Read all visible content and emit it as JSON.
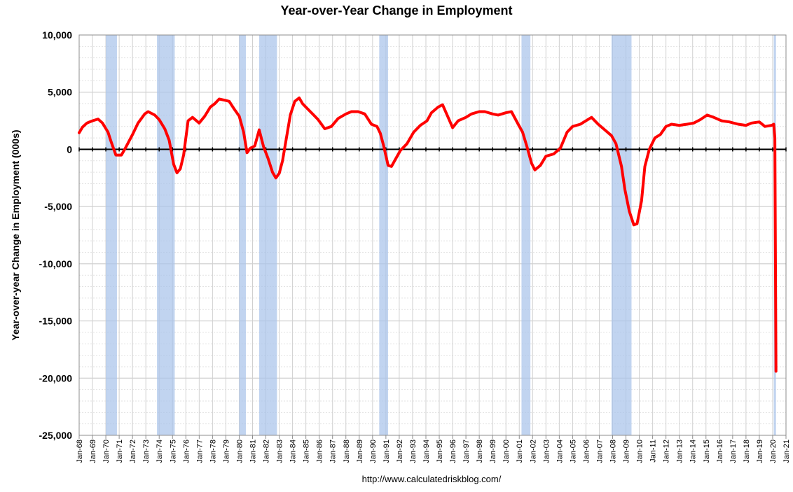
{
  "chart_data": {
    "type": "line",
    "title": "Year-over-Year Change in Employment",
    "ylabel": "Year-over-year Change in Employment (000s)",
    "source": "http://www.calculatedriskblog.com/",
    "ylim": [
      -25000,
      10000
    ],
    "xlim": [
      "1968-01",
      "2021-01"
    ],
    "y_ticks": [
      "10,000",
      "5,000",
      "0",
      "-5,000",
      "-10,000",
      "-15,000",
      "-20,000",
      "-25,000"
    ],
    "x_ticks": [
      "Jan-68",
      "Jan-69",
      "Jan-70",
      "Jan-71",
      "Jan-72",
      "Jan-73",
      "Jan-74",
      "Jan-75",
      "Jan-76",
      "Jan-77",
      "Jan-78",
      "Jan-79",
      "Jan-80",
      "Jan-81",
      "Jan-82",
      "Jan-83",
      "Jan-84",
      "Jan-85",
      "Jan-86",
      "Jan-87",
      "Jan-88",
      "Jan-89",
      "Jan-90",
      "Jan-91",
      "Jan-92",
      "Jan-93",
      "Jan-94",
      "Jan-95",
      "Jan-96",
      "Jan-97",
      "Jan-98",
      "Jan-99",
      "Jan-00",
      "Jan-01",
      "Jan-02",
      "Jan-03",
      "Jan-04",
      "Jan-05",
      "Jan-06",
      "Jan-07",
      "Jan-08",
      "Jan-09",
      "Jan-10",
      "Jan-11",
      "Jan-12",
      "Jan-13",
      "Jan-14",
      "Jan-15",
      "Jan-16",
      "Jan-17",
      "Jan-18",
      "Jan-19",
      "Jan-20",
      "Jan-21"
    ],
    "grid": true,
    "recessions": [
      {
        "start": "1970-01",
        "end": "1970-11"
      },
      {
        "start": "1973-11",
        "end": "1975-03"
      },
      {
        "start": "1980-01",
        "end": "1980-07"
      },
      {
        "start": "1981-07",
        "end": "1982-11"
      },
      {
        "start": "1990-07",
        "end": "1991-03"
      },
      {
        "start": "2001-03",
        "end": "2001-11"
      },
      {
        "start": "2007-12",
        "end": "2009-06"
      },
      {
        "start": "2020-02",
        "end": "2020-04"
      }
    ],
    "series": [
      {
        "color": "#ff0000",
        "points": [
          [
            "1968-01",
            1450
          ],
          [
            "1968-04",
            1950
          ],
          [
            "1968-08",
            2300
          ],
          [
            "1969-01",
            2500
          ],
          [
            "1969-06",
            2650
          ],
          [
            "1969-10",
            2300
          ],
          [
            "1970-03",
            1500
          ],
          [
            "1970-06",
            600
          ],
          [
            "1970-10",
            -500
          ],
          [
            "1971-03",
            -500
          ],
          [
            "1971-06",
            0
          ],
          [
            "1972-01",
            1300
          ],
          [
            "1972-06",
            2300
          ],
          [
            "1972-12",
            3100
          ],
          [
            "1973-03",
            3300
          ],
          [
            "1973-09",
            3000
          ],
          [
            "1974-01",
            2600
          ],
          [
            "1974-06",
            1800
          ],
          [
            "1974-10",
            800
          ],
          [
            "1975-02",
            -1300
          ],
          [
            "1975-05",
            -2050
          ],
          [
            "1975-08",
            -1700
          ],
          [
            "1975-11",
            -500
          ],
          [
            "1976-03",
            2500
          ],
          [
            "1976-07",
            2800
          ],
          [
            "1977-01",
            2300
          ],
          [
            "1977-06",
            2900
          ],
          [
            "1977-11",
            3700
          ],
          [
            "1978-03",
            4000
          ],
          [
            "1978-07",
            4400
          ],
          [
            "1978-12",
            4300
          ],
          [
            "1979-04",
            4200
          ],
          [
            "1979-08",
            3600
          ],
          [
            "1980-01",
            2900
          ],
          [
            "1980-05",
            1500
          ],
          [
            "1980-08",
            -300
          ],
          [
            "1980-11",
            100
          ],
          [
            "1981-03",
            300
          ],
          [
            "1981-07",
            1700
          ],
          [
            "1981-11",
            200
          ],
          [
            "1982-03",
            -800
          ],
          [
            "1982-07",
            -2000
          ],
          [
            "1982-10",
            -2500
          ],
          [
            "1983-01",
            -2100
          ],
          [
            "1983-04",
            -1000
          ],
          [
            "1983-08",
            1300
          ],
          [
            "1983-11",
            3000
          ],
          [
            "1984-03",
            4200
          ],
          [
            "1984-07",
            4500
          ],
          [
            "1984-10",
            4000
          ],
          [
            "1985-01",
            3700
          ],
          [
            "1985-06",
            3200
          ],
          [
            "1985-12",
            2600
          ],
          [
            "1986-06",
            1800
          ],
          [
            "1986-12",
            2000
          ],
          [
            "1987-06",
            2700
          ],
          [
            "1988-01",
            3100
          ],
          [
            "1988-06",
            3300
          ],
          [
            "1988-12",
            3300
          ],
          [
            "1989-06",
            3100
          ],
          [
            "1989-12",
            2200
          ],
          [
            "1990-05",
            2000
          ],
          [
            "1990-08",
            1400
          ],
          [
            "1990-11",
            300
          ],
          [
            "1991-03",
            -1400
          ],
          [
            "1991-06",
            -1500
          ],
          [
            "1991-10",
            -800
          ],
          [
            "1992-02",
            -100
          ],
          [
            "1992-08",
            500
          ],
          [
            "1993-02",
            1500
          ],
          [
            "1993-08",
            2100
          ],
          [
            "1994-02",
            2500
          ],
          [
            "1994-06",
            3200
          ],
          [
            "1994-12",
            3700
          ],
          [
            "1995-04",
            3900
          ],
          [
            "1995-09",
            2800
          ],
          [
            "1996-01",
            1900
          ],
          [
            "1996-06",
            2500
          ],
          [
            "1997-01",
            2800
          ],
          [
            "1997-06",
            3100
          ],
          [
            "1998-01",
            3300
          ],
          [
            "1998-06",
            3300
          ],
          [
            "1999-01",
            3100
          ],
          [
            "1999-06",
            3000
          ],
          [
            "2000-01",
            3200
          ],
          [
            "2000-06",
            3300
          ],
          [
            "2000-12",
            2200
          ],
          [
            "2001-04",
            1500
          ],
          [
            "2001-08",
            200
          ],
          [
            "2001-12",
            -1200
          ],
          [
            "2002-03",
            -1800
          ],
          [
            "2002-08",
            -1400
          ],
          [
            "2003-01",
            -600
          ],
          [
            "2003-08",
            -400
          ],
          [
            "2004-02",
            100
          ],
          [
            "2004-08",
            1500
          ],
          [
            "2005-01",
            2000
          ],
          [
            "2005-08",
            2200
          ],
          [
            "2006-01",
            2500
          ],
          [
            "2006-06",
            2800
          ],
          [
            "2006-12",
            2200
          ],
          [
            "2007-06",
            1700
          ],
          [
            "2007-12",
            1200
          ],
          [
            "2008-04",
            500
          ],
          [
            "2008-09",
            -1500
          ],
          [
            "2008-12",
            -3500
          ],
          [
            "2009-04",
            -5400
          ],
          [
            "2009-08",
            -6600
          ],
          [
            "2009-11",
            -6500
          ],
          [
            "2010-03",
            -4500
          ],
          [
            "2010-06",
            -1500
          ],
          [
            "2010-10",
            0
          ],
          [
            "2011-03",
            1000
          ],
          [
            "2011-08",
            1300
          ],
          [
            "2012-01",
            2000
          ],
          [
            "2012-06",
            2200
          ],
          [
            "2013-01",
            2100
          ],
          [
            "2013-08",
            2200
          ],
          [
            "2014-02",
            2300
          ],
          [
            "2014-08",
            2600
          ],
          [
            "2015-02",
            3000
          ],
          [
            "2015-08",
            2800
          ],
          [
            "2016-03",
            2500
          ],
          [
            "2016-10",
            2400
          ],
          [
            "2017-06",
            2200
          ],
          [
            "2018-01",
            2100
          ],
          [
            "2018-06",
            2300
          ],
          [
            "2019-01",
            2400
          ],
          [
            "2019-06",
            2000
          ],
          [
            "2019-12",
            2100
          ],
          [
            "2020-02",
            2200
          ],
          [
            "2020-03",
            1000
          ],
          [
            "2020-04",
            -19400
          ]
        ]
      }
    ]
  }
}
